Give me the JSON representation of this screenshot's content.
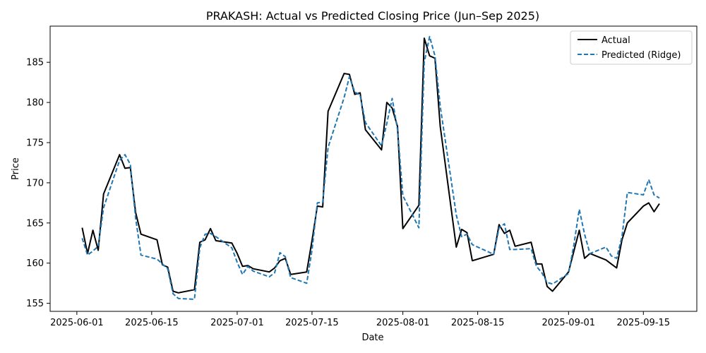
{
  "chart_data": {
    "type": "line",
    "title": "PRAKASH: Actual vs Predicted Closing Price (Jun–Sep 2025)",
    "xlabel": "Date",
    "ylabel": "Price",
    "xlim": [
      "2025-05-27",
      "2025-09-25"
    ],
    "ylim": [
      154,
      189.5
    ],
    "x_ticks": [
      "2025-06-01",
      "2025-06-15",
      "2025-07-01",
      "2025-07-15",
      "2025-08-01",
      "2025-08-15",
      "2025-09-01",
      "2025-09-15"
    ],
    "y_ticks": [
      155,
      160,
      165,
      170,
      175,
      180,
      185
    ],
    "grid": false,
    "legend": "top-right",
    "series": [
      {
        "name": "Actual",
        "color": "#000000",
        "style": "solid",
        "points": [
          [
            "2025-06-02",
            164.4
          ],
          [
            "2025-06-03",
            161.2
          ],
          [
            "2025-06-04",
            164.1
          ],
          [
            "2025-06-05",
            161.6
          ],
          [
            "2025-06-06",
            168.6
          ],
          [
            "2025-06-09",
            173.5
          ],
          [
            "2025-06-10",
            171.8
          ],
          [
            "2025-06-11",
            171.9
          ],
          [
            "2025-06-12",
            166.3
          ],
          [
            "2025-06-13",
            163.6
          ],
          [
            "2025-06-16",
            162.9
          ],
          [
            "2025-06-17",
            159.8
          ],
          [
            "2025-06-18",
            159.5
          ],
          [
            "2025-06-19",
            156.5
          ],
          [
            "2025-06-20",
            156.3
          ],
          [
            "2025-06-23",
            156.7
          ],
          [
            "2025-06-24",
            162.6
          ],
          [
            "2025-06-25",
            162.9
          ],
          [
            "2025-06-26",
            164.3
          ],
          [
            "2025-06-27",
            162.8
          ],
          [
            "2025-06-30",
            162.5
          ],
          [
            "2025-07-01",
            161.2
          ],
          [
            "2025-07-02",
            159.6
          ],
          [
            "2025-07-03",
            159.7
          ],
          [
            "2025-07-04",
            159.3
          ],
          [
            "2025-07-07",
            158.9
          ],
          [
            "2025-07-08",
            159.4
          ],
          [
            "2025-07-09",
            160.3
          ],
          [
            "2025-07-10",
            160.6
          ],
          [
            "2025-07-11",
            158.6
          ],
          [
            "2025-07-14",
            158.9
          ],
          [
            "2025-07-15",
            162.8
          ],
          [
            "2025-07-16",
            167.1
          ],
          [
            "2025-07-17",
            167.0
          ],
          [
            "2025-07-18",
            178.9
          ],
          [
            "2025-07-21",
            183.6
          ],
          [
            "2025-07-22",
            183.5
          ],
          [
            "2025-07-23",
            181.0
          ],
          [
            "2025-07-24",
            181.2
          ],
          [
            "2025-07-25",
            176.6
          ],
          [
            "2025-07-28",
            174.1
          ],
          [
            "2025-07-29",
            180.0
          ],
          [
            "2025-07-30",
            179.3
          ],
          [
            "2025-07-31",
            177.0
          ],
          [
            "2025-08-01",
            164.3
          ],
          [
            "2025-08-04",
            167.2
          ],
          [
            "2025-08-05",
            188.0
          ],
          [
            "2025-08-06",
            185.8
          ],
          [
            "2025-08-07",
            185.5
          ],
          [
            "2025-08-08",
            177.0
          ],
          [
            "2025-08-11",
            162.0
          ],
          [
            "2025-08-12",
            164.2
          ],
          [
            "2025-08-13",
            163.8
          ],
          [
            "2025-08-14",
            160.3
          ],
          [
            "2025-08-18",
            161.1
          ],
          [
            "2025-08-19",
            164.8
          ],
          [
            "2025-08-20",
            163.7
          ],
          [
            "2025-08-21",
            164.1
          ],
          [
            "2025-08-22",
            162.1
          ],
          [
            "2025-08-25",
            162.6
          ],
          [
            "2025-08-26",
            159.9
          ],
          [
            "2025-08-27",
            159.9
          ],
          [
            "2025-08-28",
            157.1
          ],
          [
            "2025-08-29",
            156.5
          ],
          [
            "2025-09-01",
            158.9
          ],
          [
            "2025-09-02",
            161.5
          ],
          [
            "2025-09-03",
            164.1
          ],
          [
            "2025-09-04",
            160.6
          ],
          [
            "2025-09-05",
            161.2
          ],
          [
            "2025-09-08",
            160.4
          ],
          [
            "2025-09-09",
            159.9
          ],
          [
            "2025-09-10",
            159.4
          ],
          [
            "2025-09-11",
            162.9
          ],
          [
            "2025-09-12",
            165.0
          ],
          [
            "2025-09-15",
            167.1
          ],
          [
            "2025-09-16",
            167.5
          ],
          [
            "2025-09-17",
            166.4
          ],
          [
            "2025-09-18",
            167.4
          ]
        ]
      },
      {
        "name": "Predicted (Ridge)",
        "color": "#1f77b4",
        "style": "dashed",
        "points": [
          [
            "2025-06-02",
            163.1
          ],
          [
            "2025-06-03",
            161.0
          ],
          [
            "2025-06-04",
            161.5
          ],
          [
            "2025-06-05",
            162.1
          ],
          [
            "2025-06-06",
            166.9
          ],
          [
            "2025-06-09",
            172.8
          ],
          [
            "2025-06-10",
            173.5
          ],
          [
            "2025-06-11",
            172.3
          ],
          [
            "2025-06-12",
            165.6
          ],
          [
            "2025-06-13",
            161.0
          ],
          [
            "2025-06-16",
            160.5
          ],
          [
            "2025-06-17",
            159.9
          ],
          [
            "2025-06-18",
            159.3
          ],
          [
            "2025-06-19",
            156.2
          ],
          [
            "2025-06-20",
            155.6
          ],
          [
            "2025-06-23",
            155.5
          ],
          [
            "2025-06-24",
            161.9
          ],
          [
            "2025-06-25",
            163.6
          ],
          [
            "2025-06-26",
            163.7
          ],
          [
            "2025-06-27",
            163.3
          ],
          [
            "2025-06-30",
            161.9
          ],
          [
            "2025-07-01",
            160.1
          ],
          [
            "2025-07-02",
            158.6
          ],
          [
            "2025-07-03",
            159.6
          ],
          [
            "2025-07-04",
            159.0
          ],
          [
            "2025-07-07",
            158.3
          ],
          [
            "2025-07-08",
            158.8
          ],
          [
            "2025-07-09",
            161.3
          ],
          [
            "2025-07-10",
            160.8
          ],
          [
            "2025-07-11",
            158.2
          ],
          [
            "2025-07-14",
            157.5
          ],
          [
            "2025-07-15",
            161.6
          ],
          [
            "2025-07-16",
            167.5
          ],
          [
            "2025-07-17",
            167.6
          ],
          [
            "2025-07-18",
            174.4
          ],
          [
            "2025-07-21",
            180.6
          ],
          [
            "2025-07-22",
            183.2
          ],
          [
            "2025-07-23",
            181.3
          ],
          [
            "2025-07-24",
            180.9
          ],
          [
            "2025-07-25",
            177.5
          ],
          [
            "2025-07-28",
            174.6
          ],
          [
            "2025-07-29",
            177.4
          ],
          [
            "2025-07-30",
            180.5
          ],
          [
            "2025-07-31",
            176.6
          ],
          [
            "2025-08-01",
            168.4
          ],
          [
            "2025-08-04",
            164.4
          ],
          [
            "2025-08-05",
            185.0
          ],
          [
            "2025-08-06",
            188.2
          ],
          [
            "2025-08-07",
            185.8
          ],
          [
            "2025-08-08",
            179.5
          ],
          [
            "2025-08-11",
            166.0
          ],
          [
            "2025-08-12",
            163.3
          ],
          [
            "2025-08-13",
            163.6
          ],
          [
            "2025-08-14",
            162.3
          ],
          [
            "2025-08-18",
            161.1
          ],
          [
            "2025-08-19",
            164.4
          ],
          [
            "2025-08-20",
            164.9
          ],
          [
            "2025-08-21",
            161.7
          ],
          [
            "2025-08-22",
            161.7
          ],
          [
            "2025-08-25",
            161.8
          ],
          [
            "2025-08-26",
            159.6
          ],
          [
            "2025-08-27",
            158.8
          ],
          [
            "2025-08-28",
            157.6
          ],
          [
            "2025-08-29",
            157.4
          ],
          [
            "2025-09-01",
            158.7
          ],
          [
            "2025-09-02",
            162.3
          ],
          [
            "2025-09-03",
            166.7
          ],
          [
            "2025-09-04",
            163.6
          ],
          [
            "2025-09-05",
            161.2
          ],
          [
            "2025-09-08",
            162.0
          ],
          [
            "2025-09-09",
            160.9
          ],
          [
            "2025-09-10",
            160.6
          ],
          [
            "2025-09-11",
            163.3
          ],
          [
            "2025-09-12",
            168.8
          ],
          [
            "2025-09-15",
            168.5
          ],
          [
            "2025-09-16",
            170.4
          ],
          [
            "2025-09-17",
            168.5
          ],
          [
            "2025-09-18",
            168.1
          ]
        ]
      }
    ]
  }
}
